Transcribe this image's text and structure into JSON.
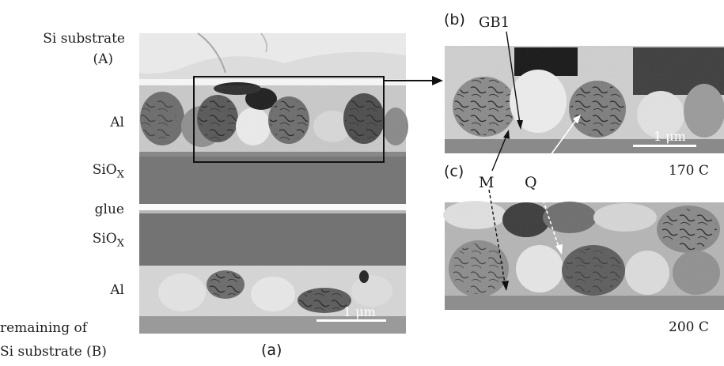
{
  "figure": {
    "left_labels": {
      "si_substrate_a_line1": "Si substrate",
      "si_substrate_a_line2": "(A)",
      "al_top": "Al",
      "siox_top": "SiO",
      "siox_top_sub": "X",
      "glue": "glue",
      "siox_bottom": "SiO",
      "siox_bottom_sub": "X",
      "al_bottom": "Al",
      "remaining_line1": "remaining of",
      "remaining_line2": "Si substrate (B)"
    },
    "panel_a": {
      "letter": "(a)",
      "scale_bar": "1 μm"
    },
    "panel_b": {
      "letter": "(b)",
      "annotation_gb1": "GB1",
      "scale_bar": "1 μm",
      "temperature": "170 C"
    },
    "panel_c": {
      "letter": "(c)",
      "annotation_m": "M",
      "annotation_q": "Q",
      "temperature": "200 C"
    }
  }
}
